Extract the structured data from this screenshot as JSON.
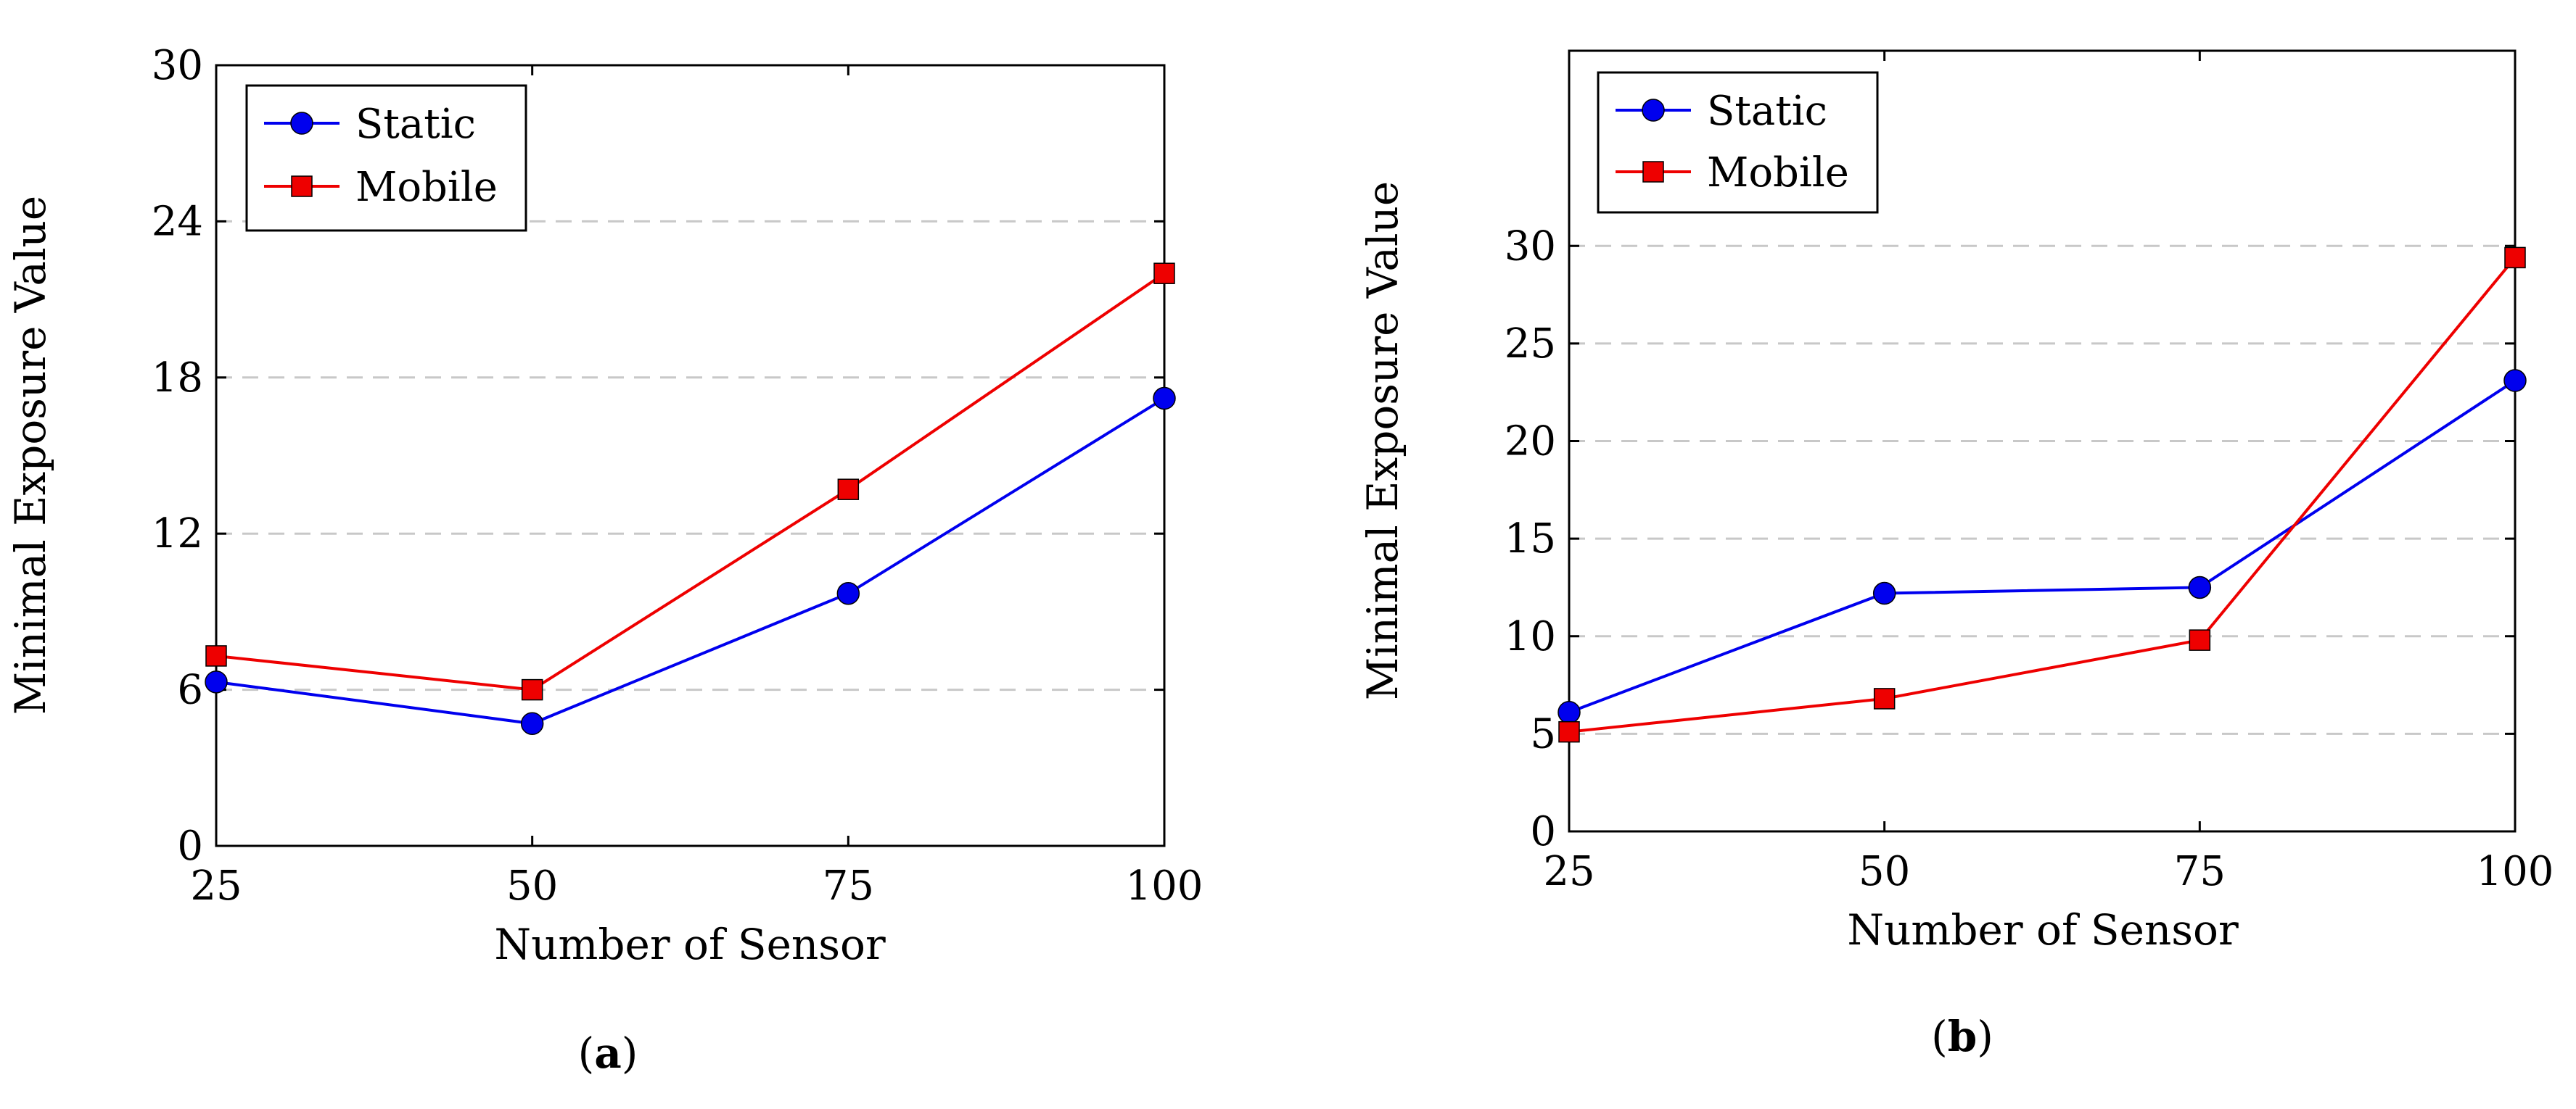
{
  "colors": {
    "static": "#0000ee",
    "mobile": "#ee0000",
    "grid": "#c8c8c8",
    "axis": "#000000"
  },
  "chart_data": [
    {
      "type": "line",
      "caption": "(a)",
      "caption_letter": "a",
      "xlabel": "Number of Sensor",
      "ylabel": "Minimal Exposure Value",
      "x": [
        25,
        50,
        75,
        100
      ],
      "xticks": [
        25,
        50,
        75,
        100
      ],
      "xlim": [
        25,
        100
      ],
      "ylim": [
        0,
        30
      ],
      "yticks": [
        0,
        6,
        12,
        18,
        24,
        30
      ],
      "grid_y": [
        6,
        12,
        18,
        24
      ],
      "legend_position": "top-left",
      "series": [
        {
          "name": "Static",
          "marker": "circle",
          "values": [
            6.3,
            4.7,
            9.7,
            17.2
          ]
        },
        {
          "name": "Mobile",
          "marker": "square",
          "values": [
            7.3,
            6.0,
            13.7,
            22.0
          ]
        }
      ]
    },
    {
      "type": "line",
      "caption": "(b)",
      "caption_letter": "b",
      "xlabel": "Number of Sensor",
      "ylabel": "Minimal Exposure Value",
      "x": [
        25,
        50,
        75,
        100
      ],
      "xticks": [
        25,
        50,
        75,
        100
      ],
      "xlim": [
        25,
        100
      ],
      "ylim": [
        0,
        40
      ],
      "yticks": [
        0,
        5,
        10,
        15,
        20,
        25,
        30
      ],
      "grid_y": [
        5,
        10,
        15,
        20,
        25,
        30
      ],
      "legend_position": "top-left",
      "series": [
        {
          "name": "Static",
          "marker": "circle",
          "values": [
            6.1,
            12.2,
            12.5,
            23.1
          ]
        },
        {
          "name": "Mobile",
          "marker": "square",
          "values": [
            5.1,
            6.8,
            9.8,
            29.4
          ]
        }
      ]
    }
  ]
}
